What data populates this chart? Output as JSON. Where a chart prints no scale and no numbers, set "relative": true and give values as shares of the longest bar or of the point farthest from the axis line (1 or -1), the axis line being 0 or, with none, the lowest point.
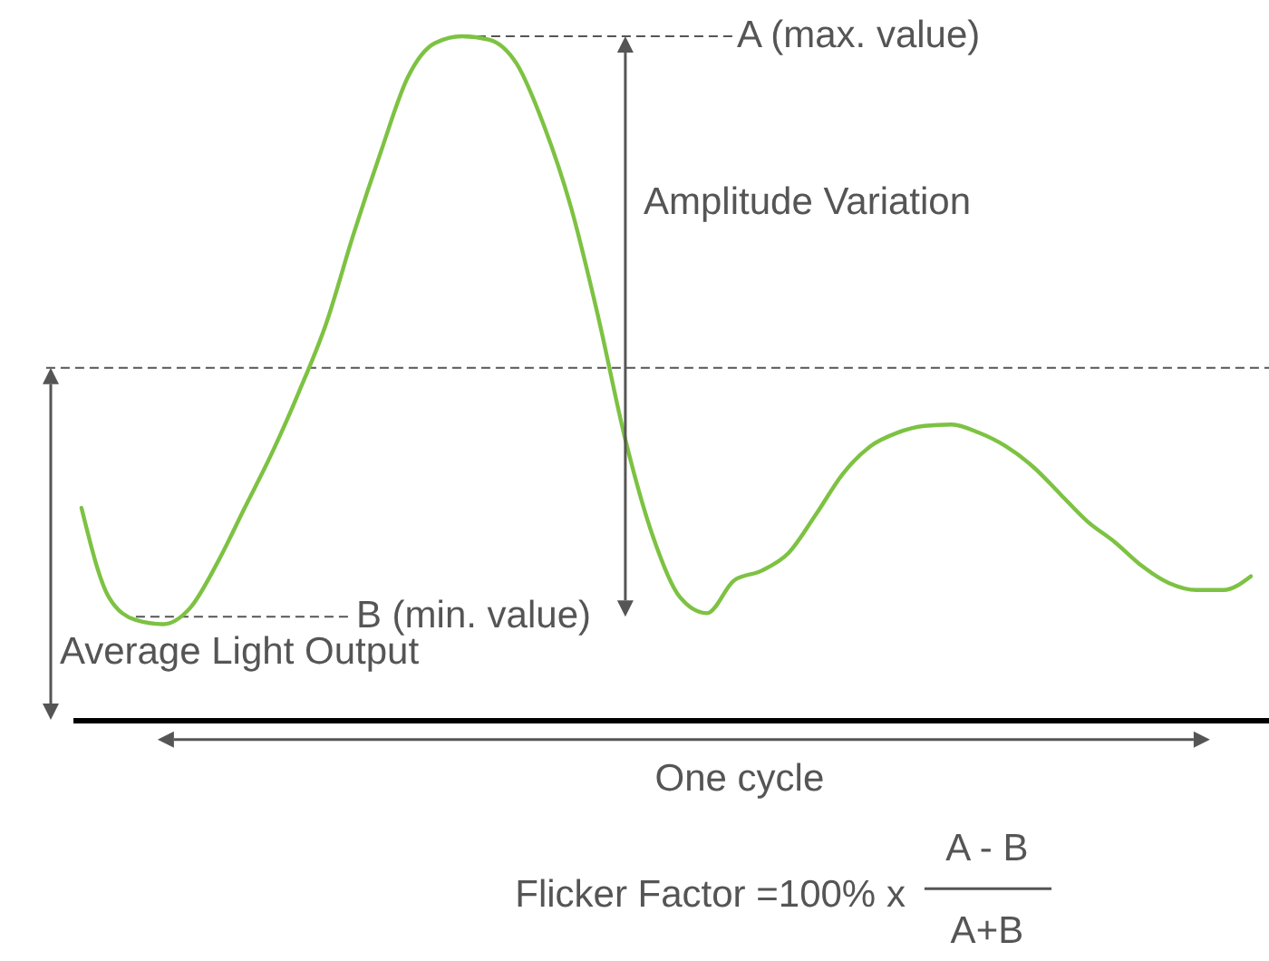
{
  "chart_data": {
    "type": "line",
    "relative": true,
    "grid": false,
    "marker": "none",
    "line_style": "solid",
    "tick_labels": false,
    "categories": [
      null,
      null,
      null,
      null,
      null,
      null,
      null,
      null,
      null,
      null,
      null,
      null,
      null,
      null,
      null,
      null,
      null,
      null,
      null,
      null,
      null,
      null,
      null,
      null,
      null,
      null,
      null,
      null,
      null,
      null,
      null,
      null,
      null,
      null,
      null,
      null,
      null,
      null,
      null,
      null,
      null,
      null,
      null,
      null
    ],
    "series": [
      {
        "color": "#7dc242",
        "values": [
          0.31,
          0.18,
          0.146,
          0.14,
          0.164,
          0.23,
          0.31,
          0.39,
          0.48,
          0.58,
          0.71,
          0.83,
          0.94,
          0.99,
          1.0,
          0.995,
          0.96,
          0.87,
          0.75,
          0.59,
          0.41,
          0.27,
          0.18,
          0.156,
          0.204,
          0.218,
          0.244,
          0.3,
          0.36,
          0.4,
          0.42,
          0.43,
          0.432,
          0.42,
          0.4,
          0.37,
          0.33,
          0.29,
          0.26,
          0.225,
          0.2,
          0.19,
          0.19,
          0.21
        ]
      }
    ],
    "ref_lines": [
      {
        "axis": "y",
        "value": 1.0,
        "label": "A (max. value)",
        "color": "#555555",
        "line_style": "dashed"
      },
      {
        "axis": "y",
        "value": 0.515,
        "label": null,
        "color": "#555555",
        "line_style": "dashed"
      },
      {
        "axis": "y",
        "value": 0.151,
        "label": "B (min. value)",
        "color": "#555555",
        "line_style": "dashed"
      }
    ],
    "annotations": [
      "Amplitude Variation",
      "Average Light Output",
      "One cycle",
      "Flicker Factor =100% x",
      "A - B",
      "A+B"
    ]
  }
}
